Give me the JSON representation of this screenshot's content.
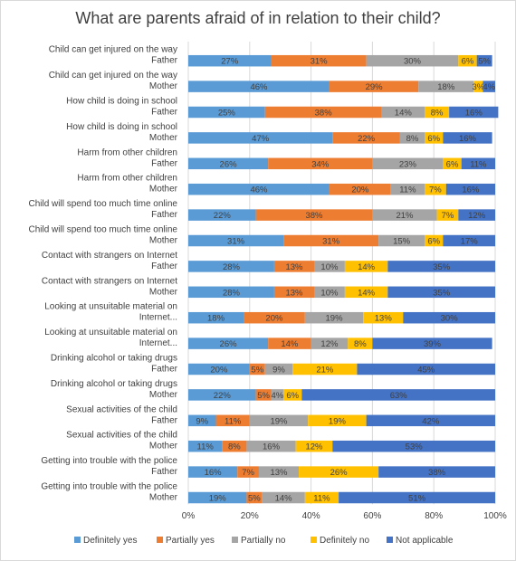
{
  "chart_data": {
    "type": "bar",
    "orientation": "horizontal",
    "stacked": "percent",
    "title": "What are parents afraid of in relation to their child?",
    "categories": [
      [
        "Child can get injured on the way",
        "Father"
      ],
      [
        "Child can get injured on the way",
        "Mother"
      ],
      [
        "How child is doing in school",
        "Father"
      ],
      [
        "How child is doing in school",
        "Mother"
      ],
      [
        "Harm from other children",
        "Father"
      ],
      [
        "Harm from other children",
        "Mother"
      ],
      [
        "Child will spend too much time online",
        "Father"
      ],
      [
        "Child will spend too much time online",
        "Mother"
      ],
      [
        "Contact with strangers on Internet",
        "Father"
      ],
      [
        "Contact with strangers on Internet",
        "Mother"
      ],
      [
        "Looking at unsuitable material on",
        "Internet..."
      ],
      [
        "Looking at unsuitable material on",
        "Internet..."
      ],
      [
        "Drinking alcohol or taking drugs",
        "Father"
      ],
      [
        "Drinking alcohol or taking drugs",
        "Mother"
      ],
      [
        "Sexual activities of the child",
        "Father"
      ],
      [
        "Sexual activities of the child",
        "Mother"
      ],
      [
        "Getting into trouble with the police",
        "Father"
      ],
      [
        "Getting into trouble with the police",
        "Mother"
      ]
    ],
    "series": [
      {
        "name": "Definitely yes",
        "color": "#5b9bd5",
        "values": [
          27,
          46,
          25,
          47,
          26,
          46,
          22,
          31,
          28,
          28,
          18,
          26,
          20,
          22,
          9,
          11,
          16,
          19
        ]
      },
      {
        "name": "Partially yes",
        "color": "#ed7d31",
        "values": [
          31,
          29,
          38,
          22,
          34,
          20,
          38,
          31,
          13,
          13,
          20,
          14,
          5,
          5,
          11,
          8,
          7,
          5
        ]
      },
      {
        "name": "Partially no",
        "color": "#a5a5a5",
        "values": [
          30,
          18,
          14,
          8,
          23,
          11,
          21,
          15,
          10,
          10,
          19,
          12,
          9,
          4,
          19,
          16,
          13,
          14
        ]
      },
      {
        "name": "Definitely no",
        "color": "#ffc000",
        "values": [
          6,
          3,
          8,
          6,
          6,
          7,
          7,
          6,
          14,
          14,
          13,
          8,
          21,
          6,
          19,
          12,
          26,
          11
        ]
      },
      {
        "name": "Not applicable",
        "color": "#4472c4",
        "values": [
          5,
          4,
          16,
          16,
          11,
          16,
          12,
          17,
          35,
          35,
          30,
          39,
          45,
          63,
          42,
          53,
          38,
          51
        ]
      }
    ],
    "data_labels": [
      [
        "27%",
        "46%",
        "25%",
        "47%",
        "26%",
        "46%",
        "22%",
        "31%",
        "28%",
        "28%",
        "18%",
        "26%",
        "20%",
        "22%",
        "9%",
        "11%",
        "16%",
        "19%"
      ],
      [
        "31%",
        "29%",
        "38%",
        "22%",
        "34%",
        "20%",
        "38%",
        "31%",
        "13%",
        "13%",
        "20%",
        "14%",
        "5%",
        "5%",
        "11%",
        "8%",
        "7%",
        "5%"
      ],
      [
        "30%",
        "18%",
        "14%",
        "8%",
        "23%",
        "11%",
        "21%",
        "15%",
        "10%",
        "10%",
        "19%",
        "12%",
        "9%",
        "4%",
        "19%",
        "16%",
        "13%",
        "14%"
      ],
      [
        "6%",
        "3%",
        "8%",
        "6%",
        "6%",
        "7%",
        "7%",
        "6%",
        "14%",
        "14%",
        "13%",
        "8%",
        "21%",
        "6%",
        "19%",
        "12%",
        "26%",
        "11%"
      ],
      [
        "5%",
        "4%",
        "16%",
        "16%",
        "11%",
        "16%",
        "12%",
        "17%",
        "35%",
        "35%",
        "30%",
        "39%",
        "45%",
        "63%",
        "42%",
        "53%",
        "38%",
        "51%"
      ]
    ],
    "xlim": [
      0,
      100
    ],
    "xticks": [
      "0%",
      "20%",
      "40%",
      "60%",
      "80%",
      "100%"
    ],
    "grid": true,
    "legend_position": "bottom"
  }
}
